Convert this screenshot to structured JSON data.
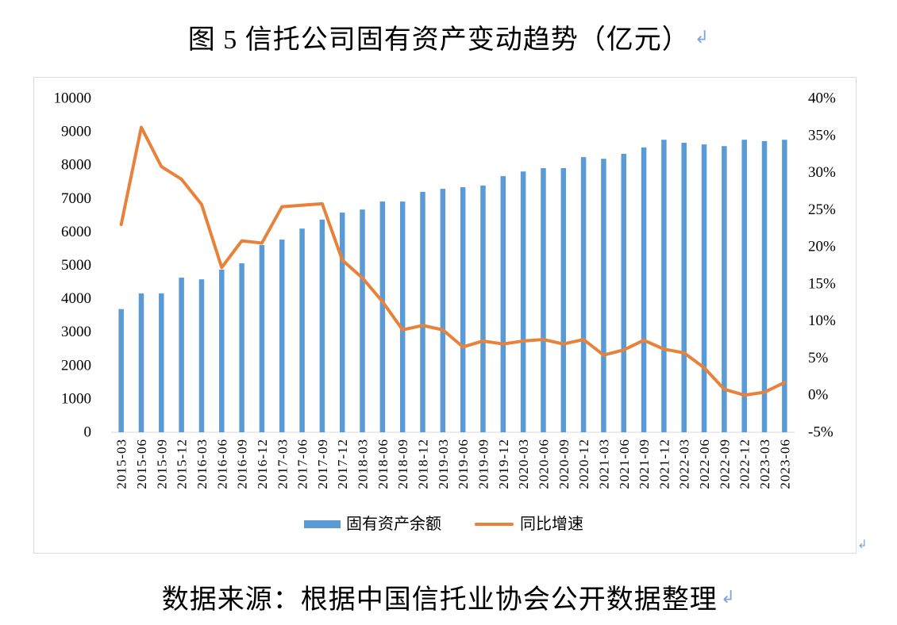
{
  "document": {
    "title": "图 5 信托公司固有资产变动趋势（亿元）",
    "source": "数据来源：根据中国信托业协会公开数据整理",
    "paragraph_mark": "↲"
  },
  "colors": {
    "paragraph_mark": "#7FA6D8",
    "chart_border": "#D9D9D9",
    "axis_line": "#D9D9D9"
  },
  "chart_data": {
    "type": "bar",
    "categories": [
      "2015-03",
      "2015-06",
      "2015-09",
      "2015-12",
      "2016-03",
      "2016-06",
      "2016-09",
      "2016-12",
      "2017-03",
      "2017-06",
      "2017-09",
      "2017-12",
      "2018-03",
      "2018-06",
      "2018-09",
      "2018-12",
      "2019-03",
      "2019-06",
      "2019-09",
      "2019-12",
      "2020-03",
      "2020-06",
      "2020-09",
      "2020-12",
      "2021-03",
      "2021-06",
      "2021-09",
      "2021-12",
      "2022-03",
      "2022-06",
      "2022-09",
      "2022-12",
      "2023-03",
      "2023-06"
    ],
    "series": [
      {
        "name": "固有资产余额",
        "type": "bar",
        "axis": "left",
        "color": "#5B9BD5",
        "values": [
          3690,
          4160,
          4160,
          4630,
          4580,
          4870,
          5060,
          5610,
          5770,
          6100,
          6370,
          6580,
          6670,
          6910,
          6910,
          7200,
          7290,
          7340,
          7390,
          7670,
          7810,
          7910,
          7910,
          8240,
          8190,
          8340,
          8530,
          8760,
          8670,
          8620,
          8570,
          8760,
          8720,
          8760
        ]
      },
      {
        "name": "同比增速",
        "type": "line",
        "axis": "right",
        "unit": "%",
        "color": "#E8823A",
        "values": [
          23.0,
          36.1,
          30.8,
          29.1,
          25.7,
          17.2,
          20.8,
          20.5,
          25.4,
          25.6,
          25.8,
          18.2,
          15.8,
          12.6,
          8.8,
          9.4,
          8.8,
          6.5,
          7.3,
          6.9,
          7.3,
          7.5,
          6.9,
          7.5,
          5.4,
          6.1,
          7.4,
          6.2,
          5.7,
          3.7,
          0.8,
          0.0,
          0.4,
          1.7
        ]
      }
    ],
    "y_left": {
      "min": 0,
      "max": 10000,
      "step": 1000,
      "tick_labels": [
        "0",
        "1000",
        "2000",
        "3000",
        "4000",
        "5000",
        "6000",
        "7000",
        "8000",
        "9000",
        "10000"
      ]
    },
    "y_right": {
      "min": -5,
      "max": 40,
      "step": 5,
      "unit": "%",
      "tick_labels": [
        "-5%",
        "0%",
        "5%",
        "10%",
        "15%",
        "20%",
        "25%",
        "30%",
        "35%",
        "40%"
      ]
    },
    "grid": false,
    "legend": "bottom"
  }
}
